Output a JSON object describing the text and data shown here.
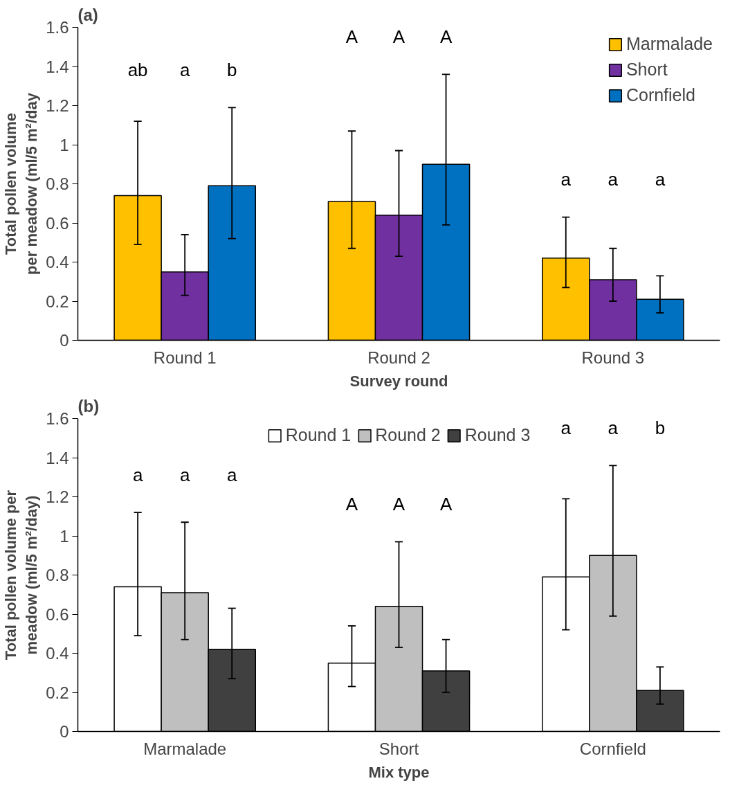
{
  "chart_data": [
    {
      "type": "bar",
      "title": "(a)",
      "xlabel": "Survey round",
      "ylabel": "Total pollen volume per meadow (ml/5 m²/day",
      "categories": [
        "Round 1",
        "Round 2",
        "Round 3"
      ],
      "ylim": [
        0,
        1.6
      ],
      "yticks": [
        0,
        0.2,
        0.4,
        0.6,
        0.8,
        1,
        1.2,
        1.4,
        1.6
      ],
      "legend": "top right",
      "series": [
        {
          "name": "Marmalade",
          "color": "#ffc000",
          "values": [
            0.74,
            0.71,
            0.42
          ],
          "errors": [
            [
              0.49,
              1.12
            ],
            [
              0.47,
              1.07
            ],
            [
              0.27,
              0.63
            ]
          ]
        },
        {
          "name": "Short",
          "color": "#7030a0",
          "values": [
            0.35,
            0.64,
            0.31
          ],
          "errors": [
            [
              0.23,
              0.54
            ],
            [
              0.43,
              0.97
            ],
            [
              0.2,
              0.47
            ]
          ]
        },
        {
          "name": "Cornfield",
          "color": "#0070c0",
          "values": [
            0.79,
            0.9,
            0.21
          ],
          "errors": [
            [
              0.52,
              1.19
            ],
            [
              0.59,
              1.36
            ],
            [
              0.14,
              0.33
            ]
          ]
        }
      ],
      "annotations": [
        "ab",
        "a",
        "b",
        "A",
        "A",
        "A",
        "a",
        "a",
        "a"
      ]
    },
    {
      "type": "bar",
      "title": "(b)",
      "xlabel": "Mix type",
      "ylabel": "Total pollen volume per meadow (ml/5 m²/day)",
      "categories": [
        "Marmalade",
        "Short",
        "Cornfield"
      ],
      "ylim": [
        0,
        1.6
      ],
      "yticks": [
        0,
        0.2,
        0.4,
        0.6,
        0.8,
        1,
        1.2,
        1.4,
        1.6
      ],
      "legend": "top",
      "series": [
        {
          "name": "Round 1",
          "color": "#ffffff",
          "values": [
            0.74,
            0.35,
            0.79
          ],
          "errors": [
            [
              0.49,
              1.12
            ],
            [
              0.23,
              0.54
            ],
            [
              0.52,
              1.19
            ]
          ]
        },
        {
          "name": "Round 2",
          "color": "#bfbfbf",
          "values": [
            0.71,
            0.64,
            0.9
          ],
          "errors": [
            [
              0.47,
              1.07
            ],
            [
              0.43,
              0.97
            ],
            [
              0.59,
              1.36
            ]
          ]
        },
        {
          "name": "Round 3",
          "color": "#404040",
          "values": [
            0.42,
            0.31,
            0.21
          ],
          "errors": [
            [
              0.27,
              0.63
            ],
            [
              0.2,
              0.47
            ],
            [
              0.14,
              0.33
            ]
          ]
        }
      ],
      "annotations": [
        "a",
        "a",
        "a",
        "A",
        "A",
        "A",
        "a",
        "a",
        "b"
      ]
    }
  ]
}
